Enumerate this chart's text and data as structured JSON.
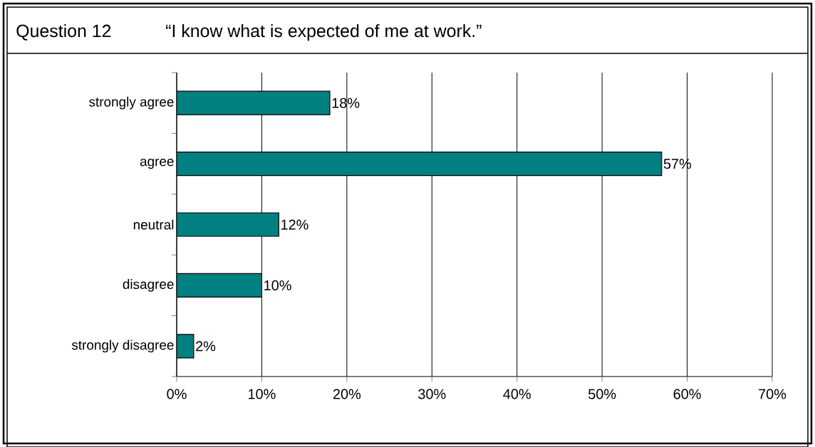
{
  "chart_data": {
    "type": "bar",
    "orientation": "horizontal",
    "title": "Question 12",
    "subtitle": "“I know what is expected of me at work.”",
    "categories": [
      "strongly agree",
      "agree",
      "neutral",
      "disagree",
      "strongly disagree"
    ],
    "values": [
      18,
      57,
      12,
      10,
      2
    ],
    "color": "#008080",
    "value_labels": [
      "18%",
      "57%",
      "12%",
      "10%",
      "2%"
    ],
    "xlim": [
      0,
      70
    ],
    "xticks": [
      {
        "value": 0,
        "label": "0%"
      },
      {
        "value": 10,
        "label": "10%"
      },
      {
        "value": 20,
        "label": "20%"
      },
      {
        "value": 30,
        "label": "30%"
      },
      {
        "value": 40,
        "label": "40%"
      },
      {
        "value": 50,
        "label": "50%"
      },
      {
        "value": 60,
        "label": "60%"
      },
      {
        "value": 70,
        "label": "70%"
      }
    ],
    "grid": "x"
  }
}
